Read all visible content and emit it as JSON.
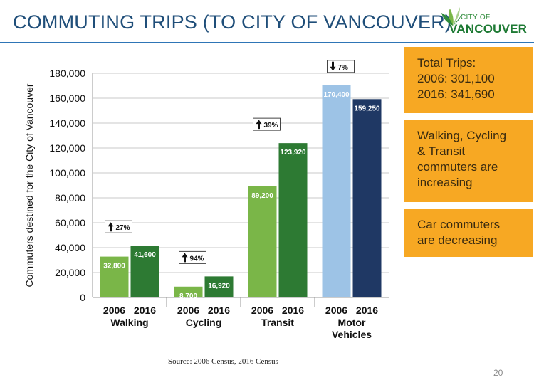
{
  "slide": {
    "title": "COMMUTING TRIPS (TO CITY OF VANCOUVER)",
    "source": "Source: 2006 Census, 2016 Census",
    "page_number": "20"
  },
  "logo": {
    "line1": "CITY OF",
    "line2": "VANCOUVER",
    "colors": [
      "#2e8b3a",
      "#1e7a34",
      "#7ab648"
    ]
  },
  "callouts": [
    {
      "lines": [
        "Total Trips:",
        "2006: 301,100",
        "2016: 341,690"
      ]
    },
    {
      "lines": [
        "Walking, Cycling",
        "& Transit",
        "commuters are",
        "increasing"
      ]
    },
    {
      "lines": [
        "Car commuters",
        "are decreasing"
      ]
    }
  ],
  "colors": {
    "accent": "#1f4e79",
    "callout_bg": "#f7a823"
  },
  "chart_data": {
    "type": "bar",
    "ylabel": "Commuters destined for the City of Vancouver",
    "ylim": [
      0,
      180000
    ],
    "yticks": [
      "0",
      "20,000",
      "40,000",
      "60,000",
      "80,000",
      "100,000",
      "120,000",
      "140,000",
      "160,000",
      "180,000"
    ],
    "grid": true,
    "series": [
      {
        "name": "2006",
        "values": [
          32800,
          8700,
          89200,
          170400
        ]
      },
      {
        "name": "2016",
        "values": [
          41600,
          16920,
          123920,
          159250
        ]
      }
    ],
    "groups": [
      {
        "label": "Walking",
        "label_lines": [
          "Walking"
        ],
        "values": [
          32800,
          41600
        ],
        "value_labels": [
          "32,800",
          "41,600"
        ],
        "bar_labels": [
          "2006",
          "2016"
        ],
        "colors": [
          "#7ab648",
          "#2d7a33"
        ],
        "change": {
          "direction": "up",
          "label": "27%"
        }
      },
      {
        "label": "Cycling",
        "label_lines": [
          "Cycling"
        ],
        "values": [
          8700,
          16920
        ],
        "value_labels": [
          "8,700",
          "16,920"
        ],
        "bar_labels": [
          "2006",
          "2016"
        ],
        "colors": [
          "#7ab648",
          "#2d7a33"
        ],
        "change": {
          "direction": "up",
          "label": "94%"
        }
      },
      {
        "label": "Transit",
        "label_lines": [
          "Transit"
        ],
        "values": [
          89200,
          123920
        ],
        "value_labels": [
          "89,200",
          "123,920"
        ],
        "bar_labels": [
          "2006",
          "2016"
        ],
        "colors": [
          "#7ab648",
          "#2d7a33"
        ],
        "change": {
          "direction": "up",
          "label": "39%"
        }
      },
      {
        "label": "Motor Vehicles",
        "label_lines": [
          "Motor",
          "Vehicles"
        ],
        "values": [
          170400,
          159250
        ],
        "value_labels": [
          "170,400",
          "159,250"
        ],
        "bar_labels": [
          "2006",
          "2016"
        ],
        "colors": [
          "#9dc3e6",
          "#1f3864"
        ],
        "change": {
          "direction": "down",
          "label": "7%"
        }
      }
    ]
  }
}
